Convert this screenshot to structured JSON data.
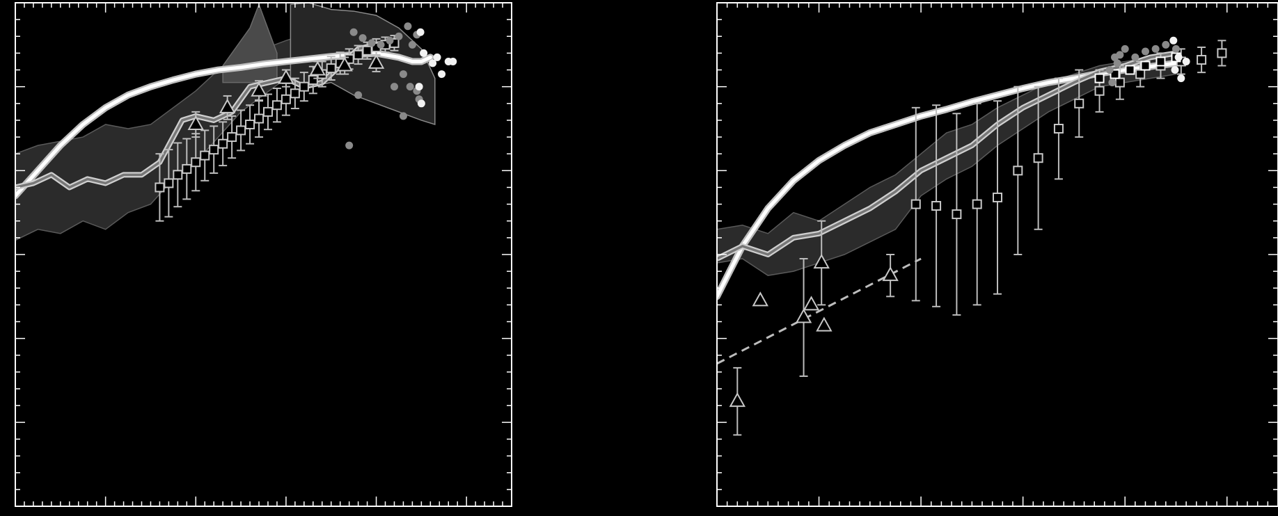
{
  "chart_data": [
    {
      "type": "line",
      "title": "",
      "xlabel": "",
      "ylabel": "",
      "xlim": [
        0,
        11
      ],
      "ylim": [
        0,
        6
      ],
      "grid": false,
      "band_dark": {
        "x": [
          0,
          0.5,
          1.0,
          1.5,
          2.0,
          2.5,
          3.0,
          3.5,
          4.0,
          4.5,
          5.0,
          5.5,
          6.0,
          6.3
        ],
        "upper": [
          4.2,
          4.3,
          4.35,
          4.4,
          4.55,
          4.5,
          4.55,
          4.75,
          4.95,
          5.2,
          5.3,
          5.45,
          5.55,
          5.6
        ],
        "lower": [
          3.17,
          3.3,
          3.25,
          3.4,
          3.3,
          3.5,
          3.6,
          3.9,
          4.1,
          4.4,
          4.7,
          4.9,
          5.1,
          5.15
        ]
      },
      "band_spike": {
        "x": [
          4.6,
          5.2,
          5.4,
          5.8
        ],
        "upper": [
          5.25,
          5.7,
          5.98,
          5.4
        ],
        "lower": [
          5.05,
          5.05,
          5.05,
          5.05
        ]
      },
      "band_box": {
        "x": [
          6.1,
          6.5,
          7.0,
          7.5,
          8.0,
          8.5,
          9.0,
          9.3
        ],
        "upper": [
          5.98,
          6.0,
          5.92,
          5.9,
          5.85,
          5.7,
          5.45,
          5.1
        ],
        "lower": [
          5.05,
          5.0,
          5.05,
          4.9,
          4.8,
          4.7,
          4.6,
          4.55
        ]
      },
      "series": [
        {
          "style": "white-thick",
          "x": [
            0,
            0.5,
            1.0,
            1.5,
            2.0,
            2.5,
            3.0,
            3.5,
            4.0,
            4.5,
            5.0,
            5.5,
            6.0,
            6.5,
            7.0,
            7.5,
            8.0,
            8.5,
            8.8,
            9.0,
            9.2
          ],
          "y": [
            3.7,
            4.0,
            4.3,
            4.55,
            4.75,
            4.9,
            5.0,
            5.08,
            5.15,
            5.2,
            5.23,
            5.27,
            5.3,
            5.33,
            5.36,
            5.38,
            5.4,
            5.35,
            5.3,
            5.3,
            5.35
          ]
        },
        {
          "style": "grey-outlined",
          "x": [
            0,
            0.4,
            0.8,
            1.2,
            1.6,
            2.0,
            2.4,
            2.8,
            3.2,
            3.5,
            3.7,
            4.0,
            4.4,
            4.8,
            5.2,
            5.6,
            6.0,
            6.4,
            6.8,
            7.2,
            7.6,
            8.0,
            8.4
          ],
          "y": [
            3.8,
            3.85,
            3.95,
            3.8,
            3.9,
            3.85,
            3.95,
            3.95,
            4.1,
            4.4,
            4.6,
            4.65,
            4.6,
            4.7,
            5.0,
            5.05,
            5.1,
            5.0,
            5.05,
            5.25,
            5.45,
            5.5,
            5.55
          ]
        }
      ],
      "squares": {
        "x": [
          3.2,
          3.4,
          3.6,
          3.8,
          4.0,
          4.2,
          4.4,
          4.6,
          4.8,
          5.0,
          5.2,
          5.4,
          5.6,
          5.8,
          6.0,
          6.2,
          6.4,
          6.6,
          6.8,
          7.0,
          7.2,
          7.4,
          7.6,
          7.8,
          8.0,
          8.2,
          8.4
        ],
        "y": [
          3.8,
          3.85,
          3.95,
          4.02,
          4.1,
          4.18,
          4.25,
          4.32,
          4.4,
          4.48,
          4.55,
          4.62,
          4.7,
          4.78,
          4.85,
          4.92,
          5.0,
          5.08,
          5.15,
          5.22,
          5.28,
          5.33,
          5.38,
          5.43,
          5.47,
          5.5,
          5.52
        ],
        "err": [
          0.4,
          0.4,
          0.38,
          0.36,
          0.34,
          0.3,
          0.28,
          0.26,
          0.25,
          0.24,
          0.23,
          0.22,
          0.21,
          0.2,
          0.19,
          0.18,
          0.17,
          0.16,
          0.15,
          0.14,
          0.13,
          0.12,
          0.11,
          0.1,
          0.1,
          0.09,
          0.09
        ]
      },
      "triangles": {
        "x": [
          4.0,
          4.7,
          5.4,
          6.0,
          6.7,
          7.3,
          8.0
        ],
        "y": [
          4.55,
          4.75,
          4.95,
          5.1,
          5.2,
          5.25,
          5.28
        ],
        "err": [
          0.15,
          0.14,
          0.12,
          0.1,
          0.1,
          0.1,
          0.1
        ]
      },
      "grey_dots": {
        "x": [
          7.5,
          7.7,
          7.9,
          8.1,
          8.3,
          8.5,
          8.7,
          8.9,
          8.8,
          8.6,
          8.75,
          8.9,
          8.95,
          7.4,
          7.6,
          8.4,
          8.6
        ],
        "y": [
          5.65,
          5.58,
          5.52,
          5.5,
          5.55,
          5.6,
          5.72,
          5.62,
          5.5,
          5.15,
          5.0,
          4.95,
          4.85,
          4.3,
          4.9,
          5.0,
          4.65
        ]
      },
      "white_dots": {
        "x": [
          8.98,
          9.05,
          9.25,
          9.35,
          9.45,
          9.6,
          9.7,
          8.95,
          9.0
        ],
        "y": [
          5.65,
          5.4,
          5.28,
          5.35,
          5.15,
          5.3,
          5.3,
          5.0,
          4.8
        ]
      }
    },
    {
      "type": "line",
      "title": "",
      "xlabel": "",
      "ylabel": "",
      "xlim": [
        0,
        11
      ],
      "ylim": [
        0,
        6
      ],
      "grid": false,
      "band_dark": {
        "x": [
          0,
          0.5,
          1.0,
          1.5,
          2.0,
          2.5,
          3.0,
          3.5,
          4.0,
          4.5,
          5.0,
          5.5,
          6.0,
          6.5,
          7.0,
          7.5,
          8.0,
          8.5,
          9.0
        ],
        "upper": [
          3.3,
          3.35,
          3.25,
          3.5,
          3.4,
          3.6,
          3.8,
          3.95,
          4.2,
          4.45,
          4.55,
          4.75,
          4.9,
          5.05,
          5.15,
          5.25,
          5.3,
          5.35,
          5.4
        ],
        "lower": [
          2.9,
          2.95,
          2.75,
          2.8,
          2.9,
          3.0,
          3.15,
          3.3,
          3.7,
          3.9,
          4.05,
          4.3,
          4.5,
          4.7,
          4.85,
          5.0,
          5.05,
          5.1,
          5.15
        ]
      },
      "series": [
        {
          "style": "white-thick",
          "x": [
            0,
            0.5,
            1.0,
            1.5,
            2.0,
            2.5,
            3.0,
            3.5,
            4.0,
            4.5,
            5.0,
            5.5,
            6.0,
            6.5,
            7.0,
            7.5,
            8.0,
            8.5,
            9.0
          ],
          "y": [
            2.5,
            3.1,
            3.55,
            3.88,
            4.12,
            4.3,
            4.45,
            4.55,
            4.65,
            4.73,
            4.82,
            4.9,
            4.98,
            5.05,
            5.1,
            5.16,
            5.2,
            5.24,
            5.28
          ]
        },
        {
          "style": "grey-outlined",
          "x": [
            0,
            0.5,
            1.0,
            1.5,
            2.0,
            2.5,
            3.0,
            3.5,
            4.0,
            4.5,
            5.0,
            5.5,
            6.0,
            6.5,
            7.0,
            7.5,
            8.0,
            8.5,
            9.0
          ],
          "y": [
            2.95,
            3.1,
            3.0,
            3.2,
            3.25,
            3.4,
            3.55,
            3.75,
            4.0,
            4.15,
            4.3,
            4.55,
            4.75,
            4.9,
            5.05,
            5.18,
            5.25,
            5.35,
            5.4
          ]
        }
      ],
      "dashed_line": {
        "x": [
          0,
          4.0
        ],
        "y": [
          1.7,
          2.95
        ]
      },
      "squares": {
        "x": [
          3.9,
          4.3,
          4.7,
          5.1,
          5.5,
          5.9,
          6.3,
          6.7,
          7.1,
          7.5,
          7.9,
          8.3,
          8.7,
          9.1,
          9.5,
          9.9
        ],
        "y": [
          3.6,
          3.58,
          3.48,
          3.6,
          3.68,
          4.0,
          4.15,
          4.5,
          4.8,
          4.95,
          5.05,
          5.15,
          5.25,
          5.3,
          5.32,
          5.4
        ],
        "err": [
          1.15,
          1.2,
          1.2,
          1.2,
          1.15,
          1.0,
          0.85,
          0.6,
          0.4,
          0.25,
          0.2,
          0.15,
          0.15,
          0.15,
          0.15,
          0.15
        ]
      },
      "triangles": {
        "x": [
          0.4,
          0.85,
          1.7,
          1.85,
          2.05,
          2.1,
          3.4
        ],
        "y": [
          1.25,
          2.45,
          2.25,
          2.4,
          2.9,
          2.15,
          2.75
        ],
        "err": [
          0.4,
          0,
          0.7,
          0,
          0.5,
          0,
          0.25
        ]
      },
      "black_squares": {
        "x": [
          7.5,
          7.8,
          8.1,
          8.4,
          8.7,
          9.0
        ],
        "y": [
          5.1,
          5.15,
          5.2,
          5.25,
          5.3,
          5.35
        ]
      },
      "grey_dots": {
        "x": [
          7.7,
          7.8,
          7.9,
          8.0,
          8.2,
          8.4,
          8.6,
          8.8,
          9.0,
          7.75,
          7.85
        ],
        "y": [
          5.2,
          5.35,
          5.38,
          5.45,
          5.35,
          5.42,
          5.45,
          5.5,
          5.45,
          5.05,
          5.28
        ]
      },
      "white_dots": {
        "x": [
          8.95,
          9.05,
          9.1,
          9.2,
          8.98
        ],
        "y": [
          5.55,
          5.35,
          5.1,
          5.3,
          5.2
        ]
      }
    }
  ]
}
